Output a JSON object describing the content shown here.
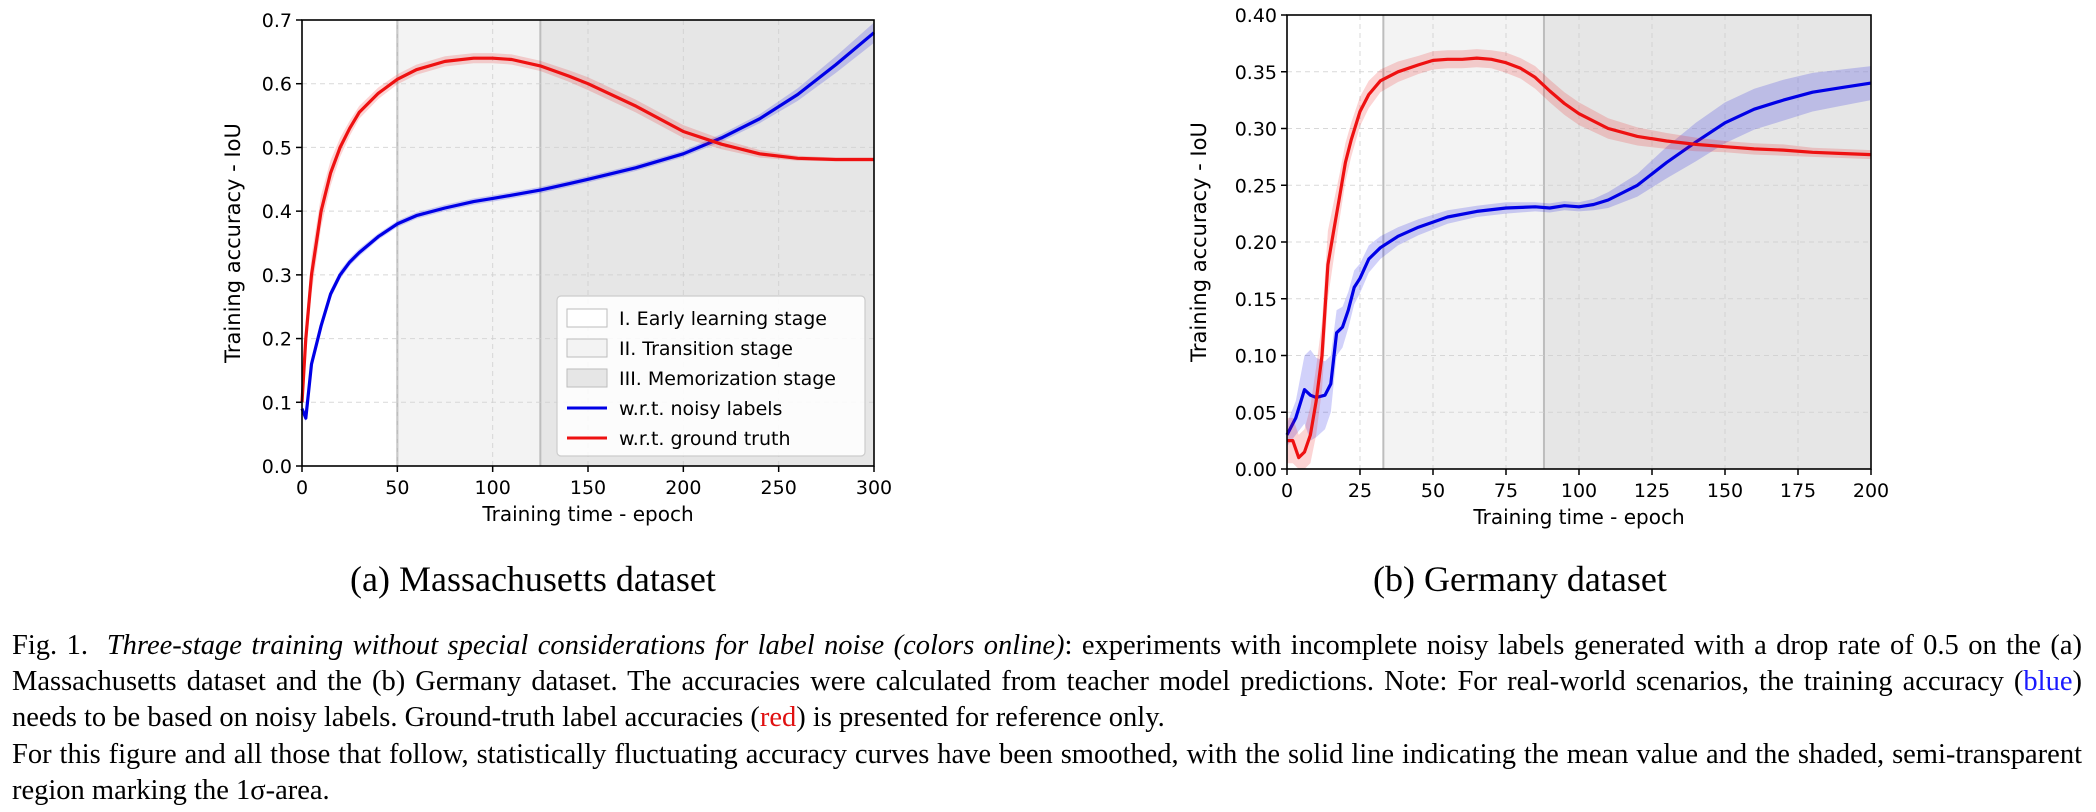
{
  "chart_data": [
    {
      "type": "line",
      "title": "(a) Massachusetts dataset",
      "xlabel": "Training time - epoch",
      "ylabel": "Training accuracy - IoU",
      "xlim": [
        0,
        300
      ],
      "ylim": [
        0,
        0.7
      ],
      "xticks": [
        "0",
        "50",
        "100",
        "150",
        "200",
        "250",
        "300"
      ],
      "yticks": [
        "0.0",
        "0.1",
        "0.2",
        "0.3",
        "0.4",
        "0.5",
        "0.6",
        "0.7"
      ],
      "grid": true,
      "stages": [
        {
          "name": "I. Early learning stage",
          "start": 0,
          "end": 50
        },
        {
          "name": "II. Transition stage",
          "start": 50,
          "end": 125
        },
        {
          "name": "III. Memorization stage",
          "start": 125,
          "end": 300
        }
      ],
      "legend": {
        "position": "lower-right",
        "entries": [
          "I. Early learning stage",
          "II. Transition stage",
          "III. Memorization stage",
          "w.r.t. noisy labels",
          "w.r.t. ground truth"
        ]
      },
      "series": [
        {
          "name": "w.r.t. noisy labels",
          "color": "#0000e6",
          "x": [
            0,
            2,
            5,
            10,
            15,
            20,
            25,
            30,
            40,
            50,
            60,
            75,
            90,
            100,
            110,
            125,
            140,
            150,
            175,
            200,
            220,
            240,
            260,
            280,
            300
          ],
          "y": [
            0.09,
            0.075,
            0.16,
            0.22,
            0.27,
            0.3,
            0.32,
            0.335,
            0.36,
            0.38,
            0.393,
            0.405,
            0.415,
            0.42,
            0.425,
            0.433,
            0.443,
            0.45,
            0.468,
            0.49,
            0.515,
            0.545,
            0.583,
            0.63,
            0.68
          ],
          "band": [
            0.006,
            0.006,
            0.008,
            0.008,
            0.007,
            0.007,
            0.006,
            0.006,
            0.005,
            0.005,
            0.005,
            0.005,
            0.005,
            0.005,
            0.005,
            0.005,
            0.005,
            0.005,
            0.005,
            0.005,
            0.006,
            0.007,
            0.01,
            0.013,
            0.016
          ]
        },
        {
          "name": "w.r.t. ground truth",
          "color": "#ee1111",
          "x": [
            0,
            2,
            5,
            10,
            15,
            20,
            25,
            30,
            40,
            50,
            60,
            75,
            90,
            100,
            110,
            125,
            140,
            150,
            175,
            200,
            220,
            240,
            260,
            280,
            300
          ],
          "y": [
            0.1,
            0.2,
            0.3,
            0.4,
            0.46,
            0.5,
            0.53,
            0.555,
            0.585,
            0.607,
            0.622,
            0.635,
            0.64,
            0.64,
            0.638,
            0.628,
            0.612,
            0.6,
            0.565,
            0.525,
            0.505,
            0.49,
            0.483,
            0.481,
            0.481
          ],
          "band": [
            0.03,
            0.03,
            0.03,
            0.025,
            0.02,
            0.015,
            0.012,
            0.01,
            0.009,
            0.008,
            0.008,
            0.008,
            0.008,
            0.008,
            0.008,
            0.008,
            0.009,
            0.01,
            0.01,
            0.01,
            0.008,
            0.006,
            0.004,
            0.003,
            0.003
          ]
        }
      ]
    },
    {
      "type": "line",
      "title": "(b) Germany dataset",
      "xlabel": "Training time - epoch",
      "ylabel": "Training accuracy - IoU",
      "xlim": [
        0,
        200
      ],
      "ylim": [
        0,
        0.4
      ],
      "xticks": [
        "0",
        "25",
        "50",
        "75",
        "100",
        "125",
        "150",
        "175",
        "200"
      ],
      "yticks": [
        "0.00",
        "0.05",
        "0.10",
        "0.15",
        "0.20",
        "0.25",
        "0.30",
        "0.35",
        "0.40"
      ],
      "grid": true,
      "stages": [
        {
          "name": "I. Early learning stage",
          "start": 0,
          "end": 33
        },
        {
          "name": "II. Transition stage",
          "start": 33,
          "end": 88
        },
        {
          "name": "III. Memorization stage",
          "start": 88,
          "end": 200
        }
      ],
      "series": [
        {
          "name": "w.r.t. noisy labels",
          "color": "#0000e6",
          "x": [
            0,
            3,
            6,
            8,
            10,
            13,
            15,
            17,
            19,
            21,
            23,
            25,
            28,
            32,
            38,
            45,
            55,
            65,
            75,
            85,
            90,
            95,
            100,
            105,
            110,
            120,
            130,
            140,
            150,
            160,
            170,
            180,
            190,
            200
          ],
          "y": [
            0.03,
            0.045,
            0.07,
            0.065,
            0.063,
            0.065,
            0.075,
            0.12,
            0.125,
            0.14,
            0.16,
            0.168,
            0.185,
            0.195,
            0.205,
            0.213,
            0.222,
            0.227,
            0.23,
            0.231,
            0.23,
            0.232,
            0.231,
            0.233,
            0.237,
            0.25,
            0.27,
            0.288,
            0.305,
            0.317,
            0.325,
            0.332,
            0.336,
            0.34
          ],
          "band": [
            0.01,
            0.015,
            0.03,
            0.04,
            0.035,
            0.03,
            0.025,
            0.02,
            0.018,
            0.016,
            0.015,
            0.013,
            0.012,
            0.01,
            0.008,
            0.007,
            0.006,
            0.005,
            0.005,
            0.004,
            0.004,
            0.004,
            0.004,
            0.005,
            0.007,
            0.01,
            0.014,
            0.017,
            0.018,
            0.018,
            0.018,
            0.017,
            0.016,
            0.015
          ]
        },
        {
          "name": "w.r.t. ground truth",
          "color": "#ee1111",
          "x": [
            0,
            2,
            4,
            6,
            8,
            10,
            12,
            14,
            16,
            18,
            20,
            22,
            25,
            28,
            32,
            38,
            45,
            50,
            55,
            60,
            65,
            70,
            75,
            80,
            85,
            90,
            95,
            100,
            110,
            120,
            130,
            140,
            150,
            160,
            170,
            180,
            190,
            200
          ],
          "y": [
            0.025,
            0.025,
            0.01,
            0.015,
            0.03,
            0.06,
            0.1,
            0.18,
            0.21,
            0.24,
            0.27,
            0.29,
            0.315,
            0.33,
            0.342,
            0.35,
            0.356,
            0.36,
            0.361,
            0.361,
            0.362,
            0.361,
            0.358,
            0.353,
            0.345,
            0.333,
            0.322,
            0.313,
            0.3,
            0.293,
            0.289,
            0.286,
            0.284,
            0.282,
            0.281,
            0.279,
            0.278,
            0.277
          ],
          "band": [
            0.02,
            0.02,
            0.02,
            0.02,
            0.025,
            0.03,
            0.03,
            0.03,
            0.025,
            0.02,
            0.017,
            0.015,
            0.013,
            0.012,
            0.01,
            0.009,
            0.008,
            0.008,
            0.008,
            0.008,
            0.008,
            0.008,
            0.009,
            0.009,
            0.01,
            0.01,
            0.01,
            0.01,
            0.009,
            0.008,
            0.007,
            0.006,
            0.005,
            0.005,
            0.005,
            0.004,
            0.004,
            0.004
          ]
        }
      ]
    }
  ],
  "captions": {
    "sub_a": "(a) Massachusetts dataset",
    "sub_b": "(b) Germany dataset",
    "fig_label": "Fig. 1.",
    "fig_italic": "Three-stage training without special considerations for label noise (colors online)",
    "fig_p1a": ": experiments with incomplete noisy labels generated with a drop rate of 0.5 on the (a) Massachusetts dataset and the (b) Germany dataset. The accuracies were calculated from teacher model predictions. Note: For real-world scenarios, the training accuracy (",
    "fig_blue": "blue",
    "fig_p1b": ") needs to be based on noisy labels. Ground-truth label accuracies (",
    "fig_red": "red",
    "fig_p1c": ") is presented for reference only.",
    "fig_p2": "For this figure and all those that follow, statistically fluctuating accuracy curves have been smoothed, with the solid line indicating the mean value and the shaded, semi-transparent region marking the 1σ-area."
  }
}
